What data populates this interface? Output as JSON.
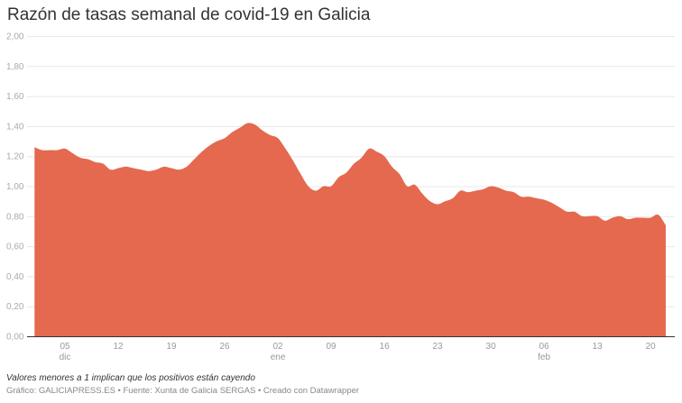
{
  "header": {
    "title": "Razón de tasas semanal de covid-19 en Galicia"
  },
  "footer": {
    "note": "Valores menores a 1 implican que los positivos están cayendo",
    "credits": "Gráfico: GALICIAPRESS.ES • Fuente: Xunta de Galicia SERGAS • Creado con Datawrapper"
  },
  "chart_data": {
    "type": "area",
    "title": "Razón de tasas semanal de covid-19 en Galicia",
    "xlabel": "",
    "ylabel": "",
    "color": "#e4694f",
    "grid": true,
    "ylim": [
      0,
      2
    ],
    "yticks": [
      "0,00",
      "0,20",
      "0,40",
      "0,60",
      "0,80",
      "1,00",
      "1,20",
      "1,40",
      "1,60",
      "1,80",
      "2,00"
    ],
    "xrange": [
      "01 dic",
      "22 feb"
    ],
    "xticks": [
      {
        "day": "05",
        "month": "dic"
      },
      {
        "day": "12",
        "month": ""
      },
      {
        "day": "19",
        "month": ""
      },
      {
        "day": "26",
        "month": ""
      },
      {
        "day": "02",
        "month": "ene"
      },
      {
        "day": "09",
        "month": ""
      },
      {
        "day": "16",
        "month": ""
      },
      {
        "day": "23",
        "month": ""
      },
      {
        "day": "30",
        "month": ""
      },
      {
        "day": "06",
        "month": "feb"
      },
      {
        "day": "13",
        "month": ""
      },
      {
        "day": "20",
        "month": ""
      }
    ],
    "xtick_offsets_days": [
      4,
      11,
      18,
      25,
      32,
      39,
      46,
      53,
      60,
      67,
      74,
      81
    ],
    "series": [
      {
        "values": [
          1.26,
          1.24,
          1.24,
          1.24,
          1.25,
          1.22,
          1.19,
          1.18,
          1.16,
          1.15,
          1.11,
          1.12,
          1.13,
          1.12,
          1.11,
          1.1,
          1.11,
          1.13,
          1.12,
          1.11,
          1.13,
          1.18,
          1.23,
          1.27,
          1.3,
          1.32,
          1.36,
          1.39,
          1.42,
          1.41,
          1.37,
          1.34,
          1.32,
          1.25,
          1.17,
          1.08,
          1.0,
          0.97,
          1.0,
          1.0,
          1.06,
          1.09,
          1.15,
          1.19,
          1.25,
          1.23,
          1.2,
          1.13,
          1.08,
          1.0,
          1.01,
          0.95,
          0.9,
          0.88,
          0.9,
          0.92,
          0.97,
          0.96,
          0.97,
          0.98,
          1.0,
          0.99,
          0.97,
          0.96,
          0.93,
          0.93,
          0.92,
          0.91,
          0.89,
          0.86,
          0.83,
          0.83,
          0.8,
          0.8,
          0.8,
          0.77,
          0.79,
          0.8,
          0.78,
          0.79,
          0.79,
          0.79,
          0.81,
          0.74
        ]
      }
    ]
  }
}
